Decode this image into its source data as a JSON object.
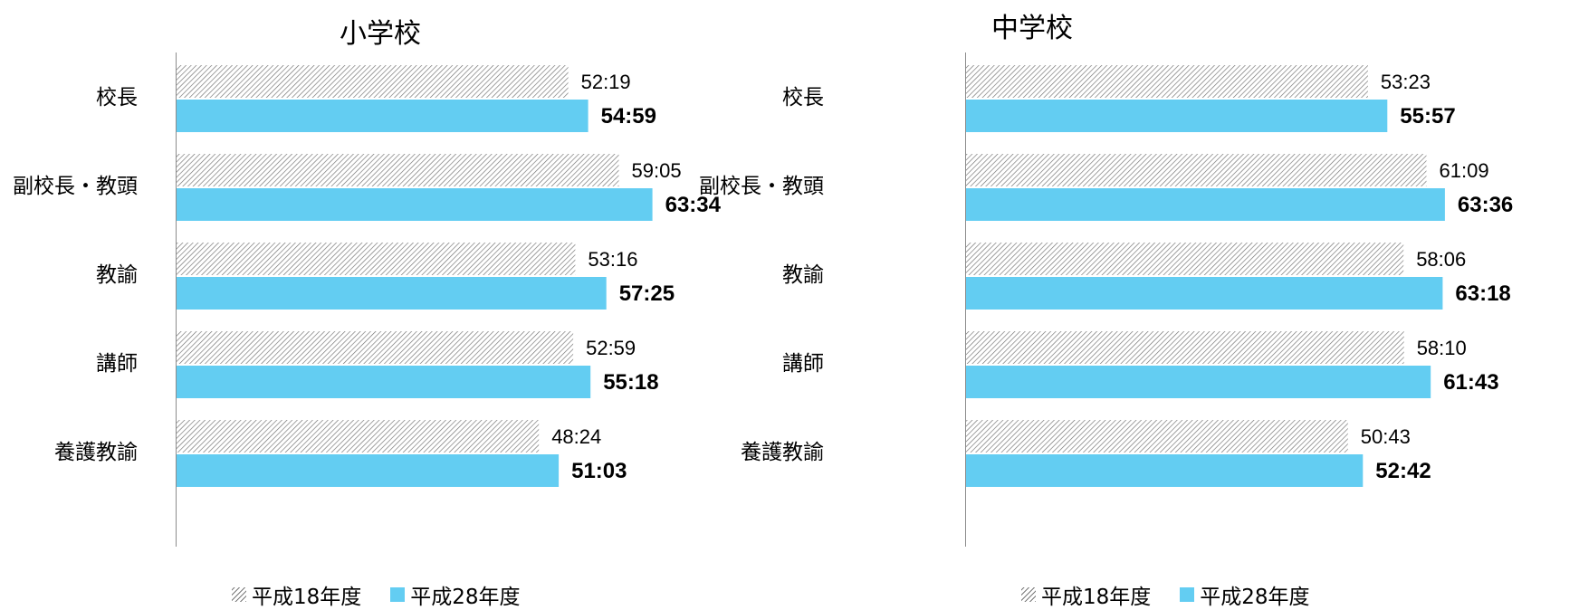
{
  "chart_data": [
    {
      "type": "bar",
      "orientation": "horizontal",
      "title": "小学校",
      "categories": [
        "校長",
        "副校長・教頭",
        "教諭",
        "講師",
        "養護教諭"
      ],
      "series": [
        {
          "name": "平成18年度",
          "values": [
            "52:19",
            "59:05",
            "53:16",
            "52:59",
            "48:24"
          ],
          "values_minutes": [
            3139,
            3545,
            3196,
            3179,
            2904
          ],
          "color": "#ffffff",
          "pattern": "hatch"
        },
        {
          "name": "平成28年度",
          "values": [
            "54:59",
            "63:34",
            "57:25",
            "55:18",
            "51:03"
          ],
          "values_minutes": [
            3299,
            3814,
            3445,
            3318,
            3063
          ],
          "color": "#63cdf2"
        }
      ],
      "grid": false,
      "legend": "bottom"
    },
    {
      "type": "bar",
      "orientation": "horizontal",
      "title": "中学校",
      "categories": [
        "校長",
        "副校長・教頭",
        "教諭",
        "講師",
        "養護教諭"
      ],
      "series": [
        {
          "name": "平成18年度",
          "values": [
            "53:23",
            "61:09",
            "58:06",
            "58:10",
            "50:43"
          ],
          "values_minutes": [
            3203,
            3669,
            3486,
            3490,
            3043
          ],
          "color": "#ffffff",
          "pattern": "hatch"
        },
        {
          "name": "平成28年度",
          "values": [
            "55:57",
            "63:36",
            "63:18",
            "61:43",
            "52:42"
          ],
          "values_minutes": [
            3357,
            3816,
            3798,
            3703,
            3162
          ],
          "color": "#63cdf2"
        }
      ],
      "grid": false,
      "legend": "bottom"
    }
  ]
}
